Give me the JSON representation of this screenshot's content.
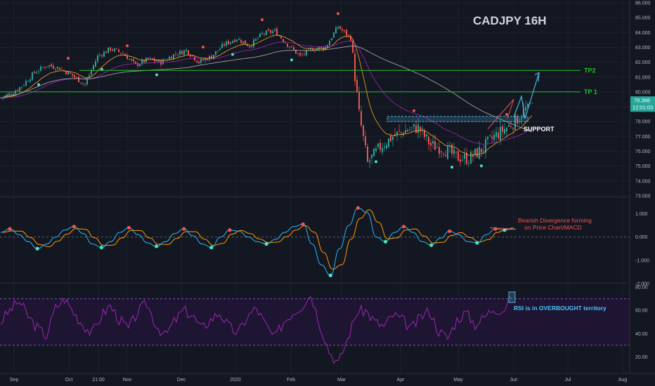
{
  "title": "CADJPY 16H",
  "annotations": {
    "tp2": "TP2",
    "tp1": "TP 1",
    "support": "SUPPORT",
    "macd_note_1": "Bearish Divergence forming",
    "macd_note_2": "on Price Chart/MACD",
    "rsi_note": "RSI is in OVERBOUGHT territory"
  },
  "price_label": {
    "value": "79.368",
    "countdown": "12:01:03"
  },
  "colors": {
    "background": "#131722",
    "grid": "#1e222d",
    "up": "#26a69a",
    "down": "#ef5350",
    "tp_line": "#22c02a",
    "ema_fast": "#f5a623",
    "ema_mid": "#9c27b0",
    "sma_slow": "#b0b0b0",
    "macd_line": "#29b6f6",
    "signal_line": "#ff9800",
    "rsi_line": "#9c27b0",
    "rsi_band": "#1e1533",
    "projection": "#4fb3d9",
    "divergence": "#ef5350"
  },
  "chart_data": [
    {
      "type": "candlestick",
      "symbol": "CADJPY",
      "timeframe": "16H",
      "ylim": [
        73,
        86
      ],
      "y_ticks": [
        "73.000",
        "74.000",
        "75.000",
        "76.000",
        "77.000",
        "78.000",
        "79.000",
        "80.000",
        "81.000",
        "82.000",
        "83.000",
        "84.000",
        "85.000",
        "86.000"
      ],
      "x_ticks": [
        "Sep",
        "Oct",
        "21:00",
        "Nov",
        "Dec",
        "2020",
        "Feb",
        "Mar",
        "Apr",
        "May",
        "Jun",
        "Jul",
        "Aug"
      ],
      "close_path": [
        [
          0,
          79.6
        ],
        [
          5,
          79.9
        ],
        [
          10,
          80.4
        ],
        [
          16,
          81.3
        ],
        [
          22,
          81.8
        ],
        [
          28,
          81.6
        ],
        [
          34,
          81.1
        ],
        [
          40,
          80.5
        ],
        [
          46,
          82.4
        ],
        [
          52,
          82.9
        ],
        [
          58,
          82.6
        ],
        [
          64,
          81.8
        ],
        [
          70,
          82.2
        ],
        [
          76,
          82.0
        ],
        [
          82,
          82.5
        ],
        [
          88,
          82.8
        ],
        [
          94,
          82.0
        ],
        [
          100,
          82.4
        ],
        [
          106,
          83.2
        ],
        [
          112,
          83.6
        ],
        [
          118,
          83.1
        ],
        [
          124,
          83.9
        ],
        [
          130,
          84.1
        ],
        [
          136,
          83.2
        ],
        [
          142,
          82.4
        ],
        [
          148,
          82.9
        ],
        [
          154,
          83.0
        ],
        [
          160,
          84.4
        ],
        [
          166,
          83.6
        ],
        [
          170,
          78.5
        ],
        [
          174,
          75.2
        ],
        [
          180,
          76.3
        ],
        [
          186,
          77.0
        ],
        [
          192,
          77.4
        ],
        [
          198,
          77.6
        ],
        [
          204,
          76.4
        ],
        [
          210,
          76.2
        ],
        [
          216,
          75.6
        ],
        [
          222,
          75.5
        ],
        [
          228,
          76.1
        ],
        [
          234,
          77.0
        ],
        [
          240,
          77.6
        ],
        [
          246,
          78.3
        ],
        [
          252,
          79.4
        ]
      ],
      "overlays": [
        "EMA fast",
        "EMA mid",
        "SMA slow"
      ],
      "horizontal_lines": [
        {
          "label": "TP2",
          "y": 81.45
        },
        {
          "label": "TP 1",
          "y": 80.0
        }
      ],
      "support_zone": [
        78.0,
        78.35
      ],
      "last_price": 79.368
    },
    {
      "type": "line",
      "name": "MACD",
      "ylim": [
        -2,
        1.5
      ],
      "y_ticks": [
        "1.000",
        "0.000",
        "-1.000",
        "-2.000"
      ],
      "series": [
        {
          "values": [
            0.2,
            0.35,
            0.1,
            -0.2,
            -0.5,
            -0.3,
            0.0,
            0.3,
            0.45,
            0.15,
            -0.3,
            -0.45,
            -0.2,
            0.2,
            0.4,
            0.1,
            -0.25,
            -0.4,
            -0.2,
            0.15,
            0.35,
            0.05,
            -0.3,
            -0.45,
            0.0,
            0.3,
            0.25,
            0.0,
            -0.2,
            -0.3,
            -0.1,
            0.2,
            0.45,
            0.55,
            -0.3,
            -1.2,
            -1.65,
            -0.5,
            0.5,
            1.25,
            1.05,
            0.0,
            -0.2,
            0.2,
            0.45,
            0.2,
            -0.2,
            -0.35,
            -0.05,
            0.25,
            0.1,
            -0.2,
            -0.25,
            0.1,
            0.35,
            0.3,
            0.4
          ]
        }
      ]
    },
    {
      "type": "line",
      "name": "RSI",
      "ylim": [
        10,
        80
      ],
      "y_ticks": [
        "80.00",
        "60.00",
        "40.00",
        "20.00"
      ],
      "bands": [
        30,
        70
      ],
      "series": [
        {
          "values": [
            50,
            60,
            68,
            55,
            45,
            38,
            62,
            70,
            58,
            48,
            40,
            55,
            64,
            52,
            44,
            58,
            66,
            48,
            38,
            50,
            60,
            56,
            44,
            52,
            58,
            46,
            40,
            54,
            62,
            48,
            36,
            50,
            58,
            64,
            74,
            48,
            25,
            14,
            35,
            58,
            60,
            50,
            46,
            56,
            52,
            44,
            54,
            60,
            42,
            36,
            52,
            58,
            48,
            54,
            62,
            60,
            70
          ]
        }
      ]
    }
  ]
}
